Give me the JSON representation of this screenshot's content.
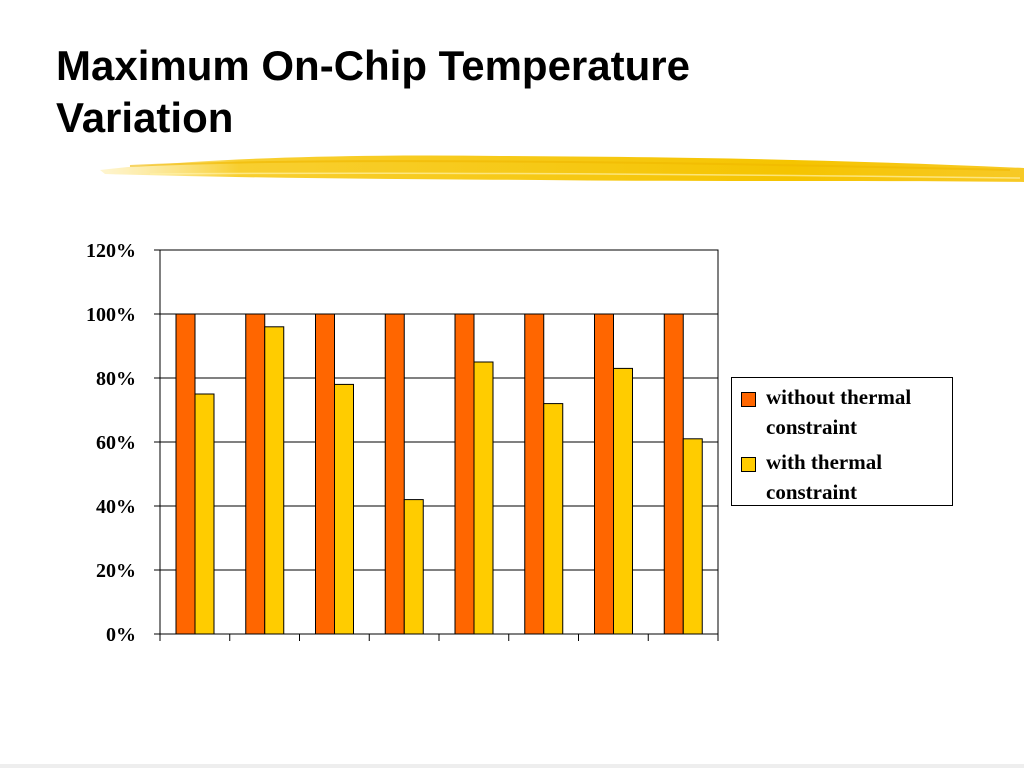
{
  "slide": {
    "title_line1": "Maximum On-Chip Temperature",
    "title_line2": "Variation"
  },
  "colors": {
    "highlighter": "#f5c400",
    "gridline": "#000000",
    "plot_border": "#000000"
  },
  "chart_data": {
    "type": "bar",
    "categories": [
      "",
      "",
      "",
      "",
      "",
      "",
      "",
      ""
    ],
    "series": [
      {
        "name": "without thermal constraint",
        "color": "#ff6600",
        "values": [
          100,
          100,
          100,
          100,
          100,
          100,
          100,
          100
        ]
      },
      {
        "name": "with thermal constraint",
        "color": "#ffcc00",
        "values": [
          75,
          96,
          78,
          42,
          85,
          72,
          83,
          61
        ]
      }
    ],
    "yticks": [
      "0%",
      "20%",
      "40%",
      "60%",
      "80%",
      "100%",
      "120%"
    ],
    "ylim": [
      0,
      120
    ],
    "ytick_step": 20,
    "y_unit": "%",
    "grid": true,
    "legend_position": "right",
    "title": "",
    "xlabel": "",
    "ylabel": ""
  }
}
